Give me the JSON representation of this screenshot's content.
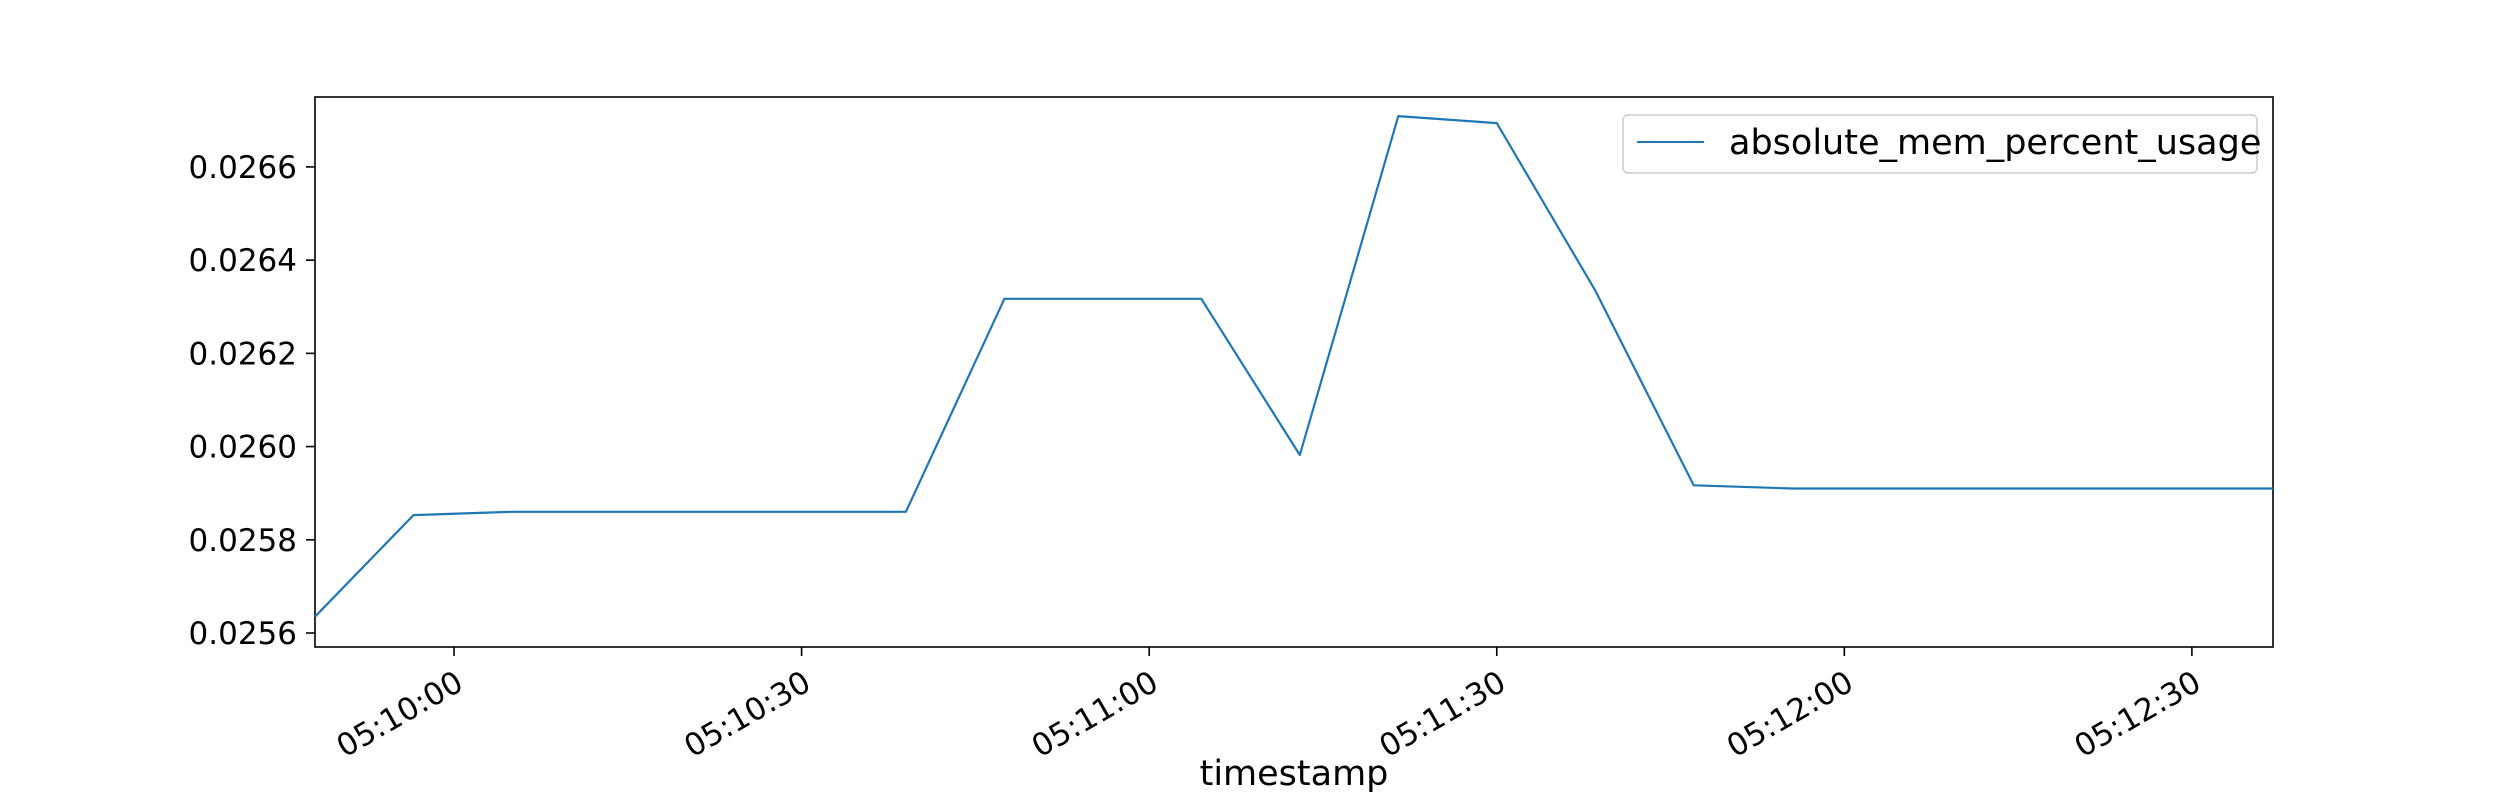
{
  "chart_data": {
    "type": "line",
    "title": "",
    "xlabel": "timestamp",
    "ylabel": "",
    "x_tick_labels": [
      "05:10:00",
      "05:10:30",
      "05:11:00",
      "05:11:30",
      "05:12:00",
      "05:12:30"
    ],
    "y_tick_labels": [
      "0.0256",
      "0.0258",
      "0.0260",
      "0.0262",
      "0.0264",
      "0.0266"
    ],
    "xlim": [
      "05:09:48",
      "05:12:37"
    ],
    "ylim": [
      0.02557,
      0.02675
    ],
    "grid": false,
    "legend_position": "upper right",
    "series": [
      {
        "name": "absolute_mem_percent_usage",
        "color": "#1f77b4",
        "x": [
          "05:09:48",
          "05:09:56.5",
          "05:10:05",
          "05:10:13.5",
          "05:10:22",
          "05:10:30.5",
          "05:10:39",
          "05:10:47.5",
          "05:10:56",
          "05:11:04.5",
          "05:11:13",
          "05:11:21.5",
          "05:11:30",
          "05:11:38.5",
          "05:11:47",
          "05:11:55.5",
          "05:12:04",
          "05:12:12.5",
          "05:12:21",
          "05:12:29.5",
          "05:12:37"
        ],
        "y": [
          0.025635,
          0.025853,
          0.02586,
          0.02586,
          0.02586,
          0.02586,
          0.02586,
          0.026317,
          0.026317,
          0.026317,
          0.025982,
          0.026709,
          0.026694,
          0.026335,
          0.025917,
          0.02591,
          0.02591,
          0.02591,
          0.02591,
          0.02591,
          0.02591
        ]
      }
    ]
  }
}
